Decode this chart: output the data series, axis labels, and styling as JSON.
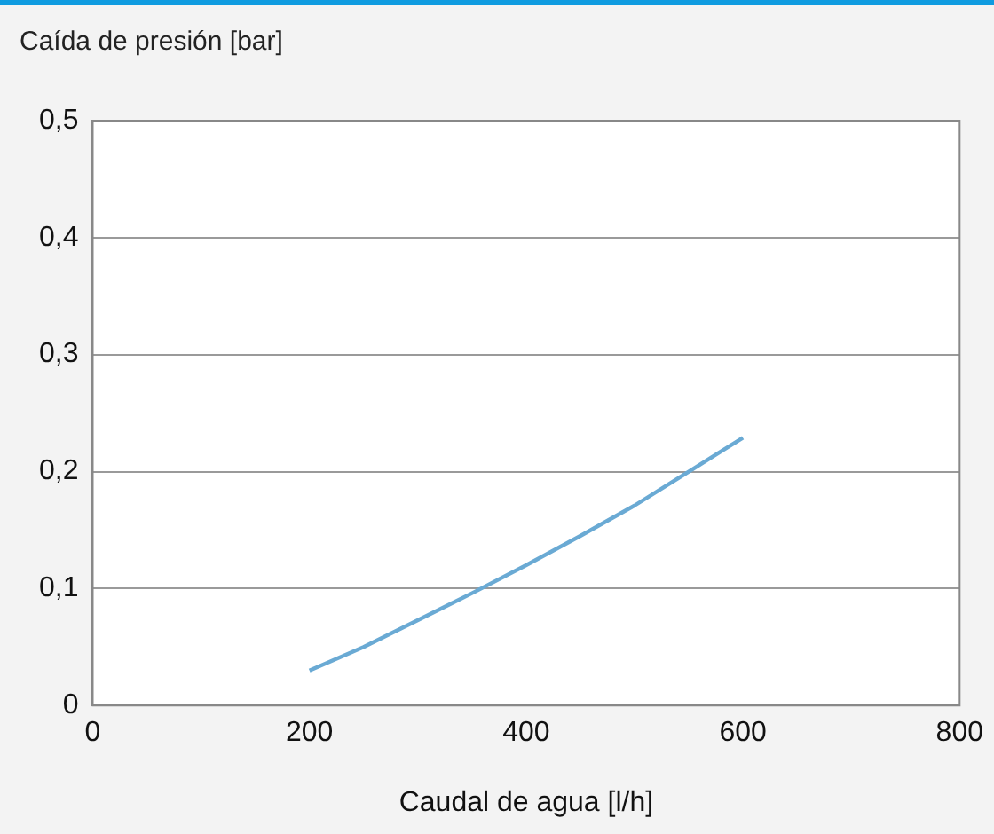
{
  "chart_data": {
    "type": "line",
    "xlabel": "Caudal de agua [l/h]",
    "ylabel": "Caída de presión [bar]",
    "series": [
      {
        "color": "#6aaad4",
        "x": [
          200,
          250,
          300,
          350,
          400,
          450,
          500,
          550,
          600
        ],
        "values": [
          0.03,
          0.05,
          0.073,
          0.096,
          0.12,
          0.145,
          0.171,
          0.2,
          0.229
        ]
      }
    ],
    "xlim": [
      0,
      800
    ],
    "xticks": [
      0,
      200,
      400,
      600,
      800
    ],
    "ylim": [
      0,
      0.5
    ],
    "yticks": [
      {
        "value": 0,
        "label": "0"
      },
      {
        "value": 0.1,
        "label": "0,1"
      },
      {
        "value": 0.2,
        "label": "0,2"
      },
      {
        "value": 0.3,
        "label": "0,3"
      },
      {
        "value": 0.4,
        "label": "0,4"
      },
      {
        "value": 0.5,
        "label": "0,5"
      }
    ],
    "grid": "y",
    "legend": false,
    "marker": "none",
    "line_style": "solid"
  }
}
